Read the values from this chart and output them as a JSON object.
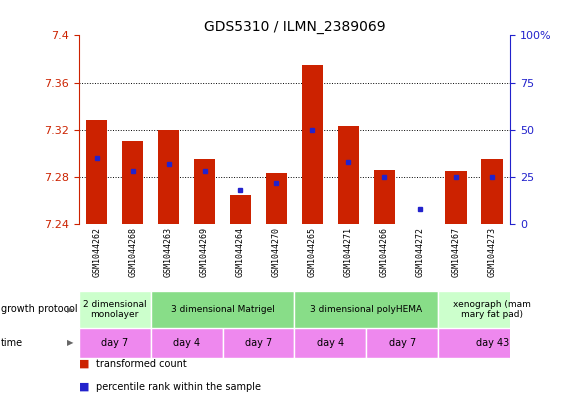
{
  "title": "GDS5310 / ILMN_2389069",
  "samples": [
    "GSM1044262",
    "GSM1044268",
    "GSM1044263",
    "GSM1044269",
    "GSM1044264",
    "GSM1044270",
    "GSM1044265",
    "GSM1044271",
    "GSM1044266",
    "GSM1044272",
    "GSM1044267",
    "GSM1044273"
  ],
  "transformed_counts": [
    7.328,
    7.31,
    7.32,
    7.295,
    7.265,
    7.283,
    7.375,
    7.323,
    7.286,
    7.24,
    7.285,
    7.295
  ],
  "base_value": 7.24,
  "percentile_ranks": [
    35,
    28,
    32,
    28,
    18,
    22,
    50,
    33,
    25,
    8,
    25,
    25
  ],
  "ylim": [
    7.24,
    7.4
  ],
  "yticks": [
    7.24,
    7.28,
    7.32,
    7.36,
    7.4
  ],
  "y2ticks": [
    0,
    25,
    50,
    75,
    100
  ],
  "y2labels": [
    "0",
    "25",
    "50",
    "75",
    "100%"
  ],
  "dotted_lines": [
    7.28,
    7.32,
    7.36
  ],
  "bar_color": "#cc2200",
  "dot_color": "#2222cc",
  "tick_color_left": "#cc2200",
  "tick_color_right": "#2222cc",
  "growth_protocol_groups": [
    {
      "label": "2 dimensional\nmonolayer",
      "start": 0,
      "end": 2,
      "color": "#ccffcc"
    },
    {
      "label": "3 dimensional Matrigel",
      "start": 2,
      "end": 6,
      "color": "#88dd88"
    },
    {
      "label": "3 dimensional polyHEMA",
      "start": 6,
      "end": 10,
      "color": "#88dd88"
    },
    {
      "label": "xenograph (mam\nmary fat pad)",
      "start": 10,
      "end": 13,
      "color": "#ccffcc"
    }
  ],
  "time_groups": [
    {
      "label": "day 7",
      "start": 0,
      "end": 2,
      "color": "#ee88ee"
    },
    {
      "label": "day 4",
      "start": 2,
      "end": 4,
      "color": "#ee88ee"
    },
    {
      "label": "day 7",
      "start": 4,
      "end": 6,
      "color": "#ee88ee"
    },
    {
      "label": "day 4",
      "start": 6,
      "end": 8,
      "color": "#ee88ee"
    },
    {
      "label": "day 7",
      "start": 8,
      "end": 10,
      "color": "#ee88ee"
    },
    {
      "label": "day 43",
      "start": 10,
      "end": 13,
      "color": "#ee88ee"
    }
  ],
  "xlabel_growth_protocol": "growth protocol",
  "xlabel_time": "time",
  "legend_items": [
    {
      "label": "transformed count",
      "color": "#cc2200"
    },
    {
      "label": "percentile rank within the sample",
      "color": "#2222cc"
    }
  ],
  "bg_color": "#ffffff",
  "sample_bg_color": "#cccccc"
}
